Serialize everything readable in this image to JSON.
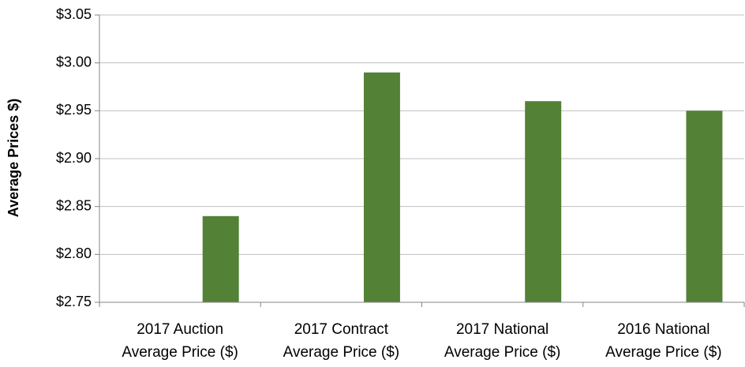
{
  "chart_data": {
    "type": "bar",
    "y_label": "Average Prices $)",
    "categories": [
      [
        "2017 Auction",
        "Average Price ($)"
      ],
      [
        "2017 Contract",
        "Average Price ($)"
      ],
      [
        "2017 National",
        "Average Price ($)"
      ],
      [
        "2016 National",
        "Average Price ($)"
      ]
    ],
    "values": [
      2.84,
      2.99,
      2.96,
      2.95
    ],
    "color": "#538135",
    "ylim": [
      2.75,
      3.05
    ],
    "yticks": [
      {
        "value": 2.75,
        "label": "$2.75"
      },
      {
        "value": 2.8,
        "label": "$2.80"
      },
      {
        "value": 2.85,
        "label": "$2.85"
      },
      {
        "value": 2.9,
        "label": "$2.90"
      },
      {
        "value": 2.95,
        "label": "$2.95"
      },
      {
        "value": 3.0,
        "label": "$3.00"
      },
      {
        "value": 3.05,
        "label": "$3.05"
      }
    ],
    "grid": true
  }
}
